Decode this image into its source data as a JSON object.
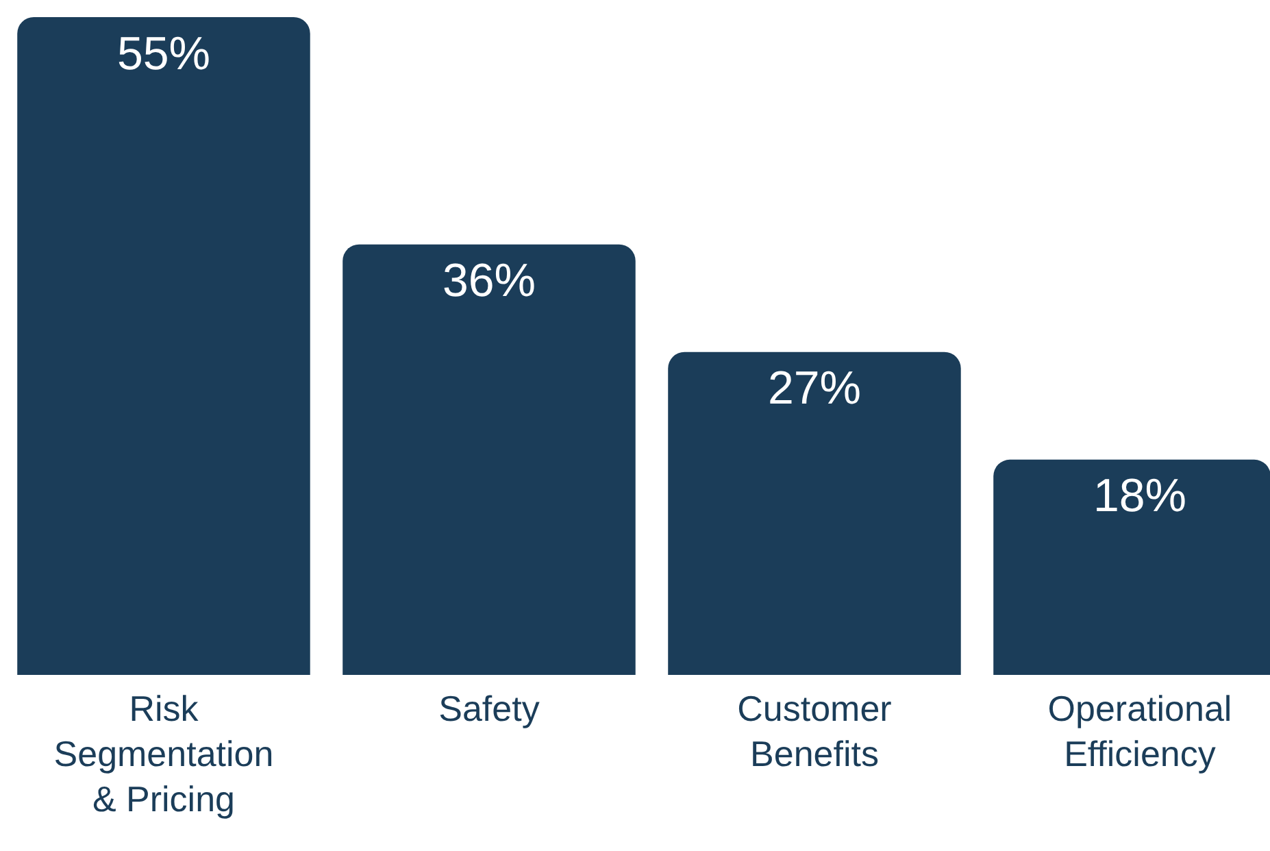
{
  "chart_data": {
    "type": "bar",
    "categories": [
      "Risk Segmentation & Pricing",
      "Safety",
      "Customer Benefits",
      "Operational Efficiency"
    ],
    "values": [
      55,
      36,
      27,
      18
    ],
    "value_labels": [
      "55%",
      "36%",
      "27%",
      "18%"
    ],
    "color": "#1b3d59"
  }
}
